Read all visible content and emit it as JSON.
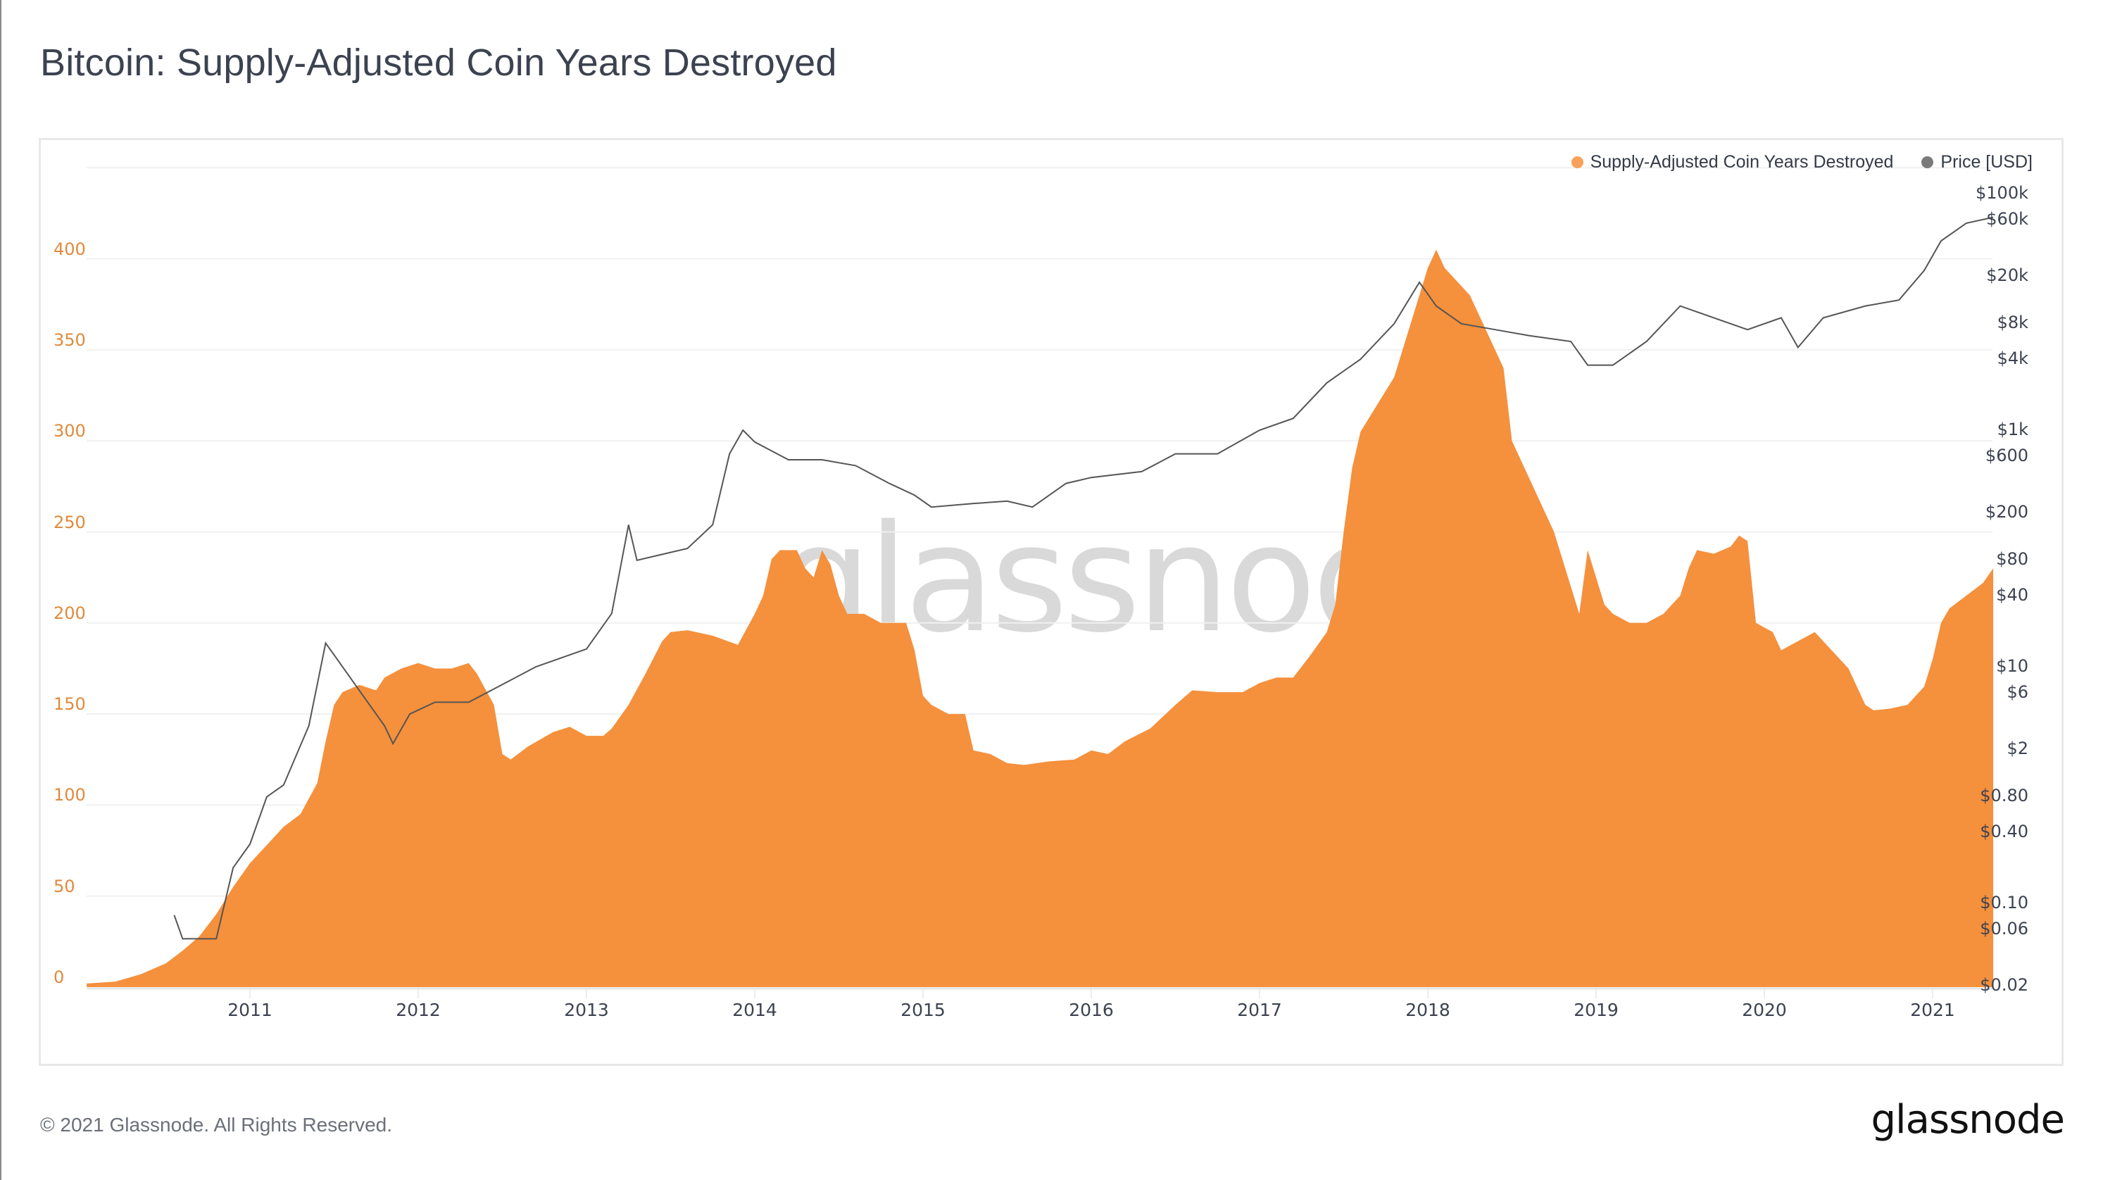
{
  "title": "Bitcoin: Supply-Adjusted Coin Years Destroyed",
  "legend": [
    {
      "label": "Supply-Adjusted Coin Years Destroyed",
      "color": "#f7a15a"
    },
    {
      "label": "Price [USD]",
      "color": "#7a7a7a"
    }
  ],
  "watermark": "glassnode",
  "footer": {
    "copyright": "© 2021 Glassnode. All Rights Reserved.",
    "logo": "glassnode"
  },
  "colors": {
    "area": "#f5903d",
    "price_line": "#555555",
    "grid": "#f0f0f0",
    "left_axis_text": "#e08a3c",
    "right_axis_text": "#3c4250"
  },
  "chart_data": {
    "type": "area",
    "title": "Bitcoin: Supply-Adjusted Coin Years Destroyed",
    "xlabel": "",
    "ylabel": "",
    "xlim": [
      2010.03,
      2021.36
    ],
    "ylim": [
      0,
      450
    ],
    "grid": true,
    "legend_position": "top-right",
    "x_ticks": [
      "2011",
      "2012",
      "2013",
      "2014",
      "2015",
      "2016",
      "2017",
      "2018",
      "2019",
      "2020",
      "2021"
    ],
    "y_ticks_left": [
      "0",
      "50",
      "100",
      "150",
      "200",
      "250",
      "300",
      "350",
      "400"
    ],
    "y_ticks_right": [
      {
        "label": "$100k",
        "value": 100000
      },
      {
        "label": "$60k",
        "value": 60000
      },
      {
        "label": "$20k",
        "value": 20000
      },
      {
        "label": "$8k",
        "value": 8000
      },
      {
        "label": "$4k",
        "value": 4000
      },
      {
        "label": "$1k",
        "value": 1000
      },
      {
        "label": "$600",
        "value": 600
      },
      {
        "label": "$200",
        "value": 200
      },
      {
        "label": "$80",
        "value": 80
      },
      {
        "label": "$40",
        "value": 40
      },
      {
        "label": "$10",
        "value": 10
      },
      {
        "label": "$6",
        "value": 6
      },
      {
        "label": "$2",
        "value": 2
      },
      {
        "label": "$0.80",
        "value": 0.8
      },
      {
        "label": "$0.40",
        "value": 0.4
      },
      {
        "label": "$0.10",
        "value": 0.1
      },
      {
        "label": "$0.06",
        "value": 0.06
      },
      {
        "label": "$0.02",
        "value": 0.02
      }
    ],
    "right_axis_scale": "log",
    "series": [
      {
        "name": "Supply-Adjusted Coin Years Destroyed",
        "type": "area",
        "axis": "left",
        "x": [
          2010.03,
          2010.2,
          2010.35,
          2010.5,
          2010.6,
          2010.7,
          2010.8,
          2010.9,
          2011.0,
          2011.1,
          2011.2,
          2011.3,
          2011.4,
          2011.45,
          2011.5,
          2011.55,
          2011.65,
          2011.75,
          2011.8,
          2011.9,
          2012.0,
          2012.1,
          2012.2,
          2012.3,
          2012.35,
          2012.45,
          2012.5,
          2012.55,
          2012.65,
          2012.8,
          2012.9,
          2013.0,
          2013.1,
          2013.15,
          2013.25,
          2013.35,
          2013.45,
          2013.5,
          2013.6,
          2013.75,
          2013.9,
          2014.0,
          2014.05,
          2014.1,
          2014.15,
          2014.25,
          2014.3,
          2014.35,
          2014.4,
          2014.45,
          2014.5,
          2014.55,
          2014.65,
          2014.75,
          2014.9,
          2014.95,
          2015.0,
          2015.05,
          2015.15,
          2015.25,
          2015.3,
          2015.4,
          2015.5,
          2015.6,
          2015.75,
          2015.9,
          2016.0,
          2016.1,
          2016.2,
          2016.35,
          2016.5,
          2016.6,
          2016.75,
          2016.9,
          2017.0,
          2017.1,
          2017.2,
          2017.3,
          2017.4,
          2017.45,
          2017.5,
          2017.55,
          2017.6,
          2017.7,
          2017.8,
          2017.9,
          2018.0,
          2018.05,
          2018.1,
          2018.15,
          2018.25,
          2018.35,
          2018.45,
          2018.5,
          2018.55,
          2018.65,
          2018.75,
          2018.85,
          2018.9,
          2018.95,
          2019.05,
          2019.1,
          2019.2,
          2019.3,
          2019.4,
          2019.5,
          2019.55,
          2019.6,
          2019.7,
          2019.8,
          2019.85,
          2019.9,
          2019.95,
          2020.05,
          2020.1,
          2020.2,
          2020.3,
          2020.4,
          2020.5,
          2020.55,
          2020.6,
          2020.65,
          2020.75,
          2020.85,
          2020.95,
          2021.0,
          2021.05,
          2021.1,
          2021.2,
          2021.3,
          2021.36
        ],
        "values": [
          2,
          3,
          7,
          13,
          20,
          28,
          40,
          55,
          68,
          78,
          88,
          95,
          112,
          135,
          155,
          162,
          166,
          163,
          170,
          175,
          178,
          175,
          175,
          178,
          172,
          155,
          128,
          125,
          132,
          140,
          143,
          138,
          138,
          142,
          155,
          172,
          190,
          195,
          196,
          193,
          188,
          205,
          215,
          235,
          240,
          240,
          230,
          225,
          240,
          232,
          215,
          205,
          205,
          200,
          200,
          185,
          160,
          155,
          150,
          150,
          130,
          128,
          123,
          122,
          124,
          125,
          130,
          128,
          135,
          142,
          155,
          163,
          162,
          162,
          167,
          170,
          170,
          182,
          195,
          210,
          250,
          285,
          305,
          320,
          335,
          365,
          395,
          405,
          395,
          390,
          380,
          360,
          340,
          300,
          290,
          270,
          250,
          220,
          205,
          240,
          210,
          205,
          200,
          200,
          205,
          215,
          230,
          240,
          238,
          242,
          248,
          245,
          200,
          195,
          185,
          190,
          195,
          185,
          175,
          165,
          155,
          152,
          153,
          155,
          165,
          180,
          200,
          208,
          215,
          222,
          230
        ]
      },
      {
        "name": "Price [USD]",
        "type": "line",
        "axis": "right",
        "x": [
          2010.55,
          2010.6,
          2010.8,
          2010.9,
          2011.0,
          2011.1,
          2011.2,
          2011.35,
          2011.45,
          2011.5,
          2011.6,
          2011.7,
          2011.8,
          2011.85,
          2011.95,
          2012.1,
          2012.3,
          2012.5,
          2012.7,
          2012.9,
          2013.0,
          2013.15,
          2013.25,
          2013.3,
          2013.45,
          2013.6,
          2013.75,
          2013.85,
          2013.93,
          2014.0,
          2014.2,
          2014.4,
          2014.6,
          2014.8,
          2014.95,
          2015.05,
          2015.3,
          2015.5,
          2015.65,
          2015.85,
          2016.0,
          2016.3,
          2016.5,
          2016.75,
          2017.0,
          2017.2,
          2017.4,
          2017.6,
          2017.8,
          2017.95,
          2018.05,
          2018.2,
          2018.4,
          2018.6,
          2018.85,
          2018.95,
          2019.1,
          2019.3,
          2019.5,
          2019.7,
          2019.9,
          2020.1,
          2020.2,
          2020.35,
          2020.6,
          2020.8,
          2020.95,
          2021.05,
          2021.2,
          2021.36
        ],
        "log10_values": [
          -1.1,
          -1.3,
          -1.3,
          -0.7,
          -0.5,
          -0.1,
          0.0,
          0.5,
          1.2,
          1.1,
          0.9,
          0.7,
          0.5,
          0.35,
          0.6,
          0.7,
          0.7,
          0.85,
          1.0,
          1.1,
          1.15,
          1.45,
          2.2,
          1.9,
          1.95,
          2.0,
          2.2,
          2.8,
          3.0,
          2.9,
          2.75,
          2.75,
          2.7,
          2.55,
          2.45,
          2.35,
          2.38,
          2.4,
          2.35,
          2.55,
          2.6,
          2.65,
          2.8,
          2.8,
          3.0,
          3.1,
          3.4,
          3.6,
          3.9,
          4.25,
          4.05,
          3.9,
          3.85,
          3.8,
          3.75,
          3.55,
          3.55,
          3.75,
          4.05,
          3.95,
          3.85,
          3.95,
          3.7,
          3.95,
          4.05,
          4.1,
          4.35,
          4.6,
          4.75,
          4.8
        ]
      }
    ]
  }
}
